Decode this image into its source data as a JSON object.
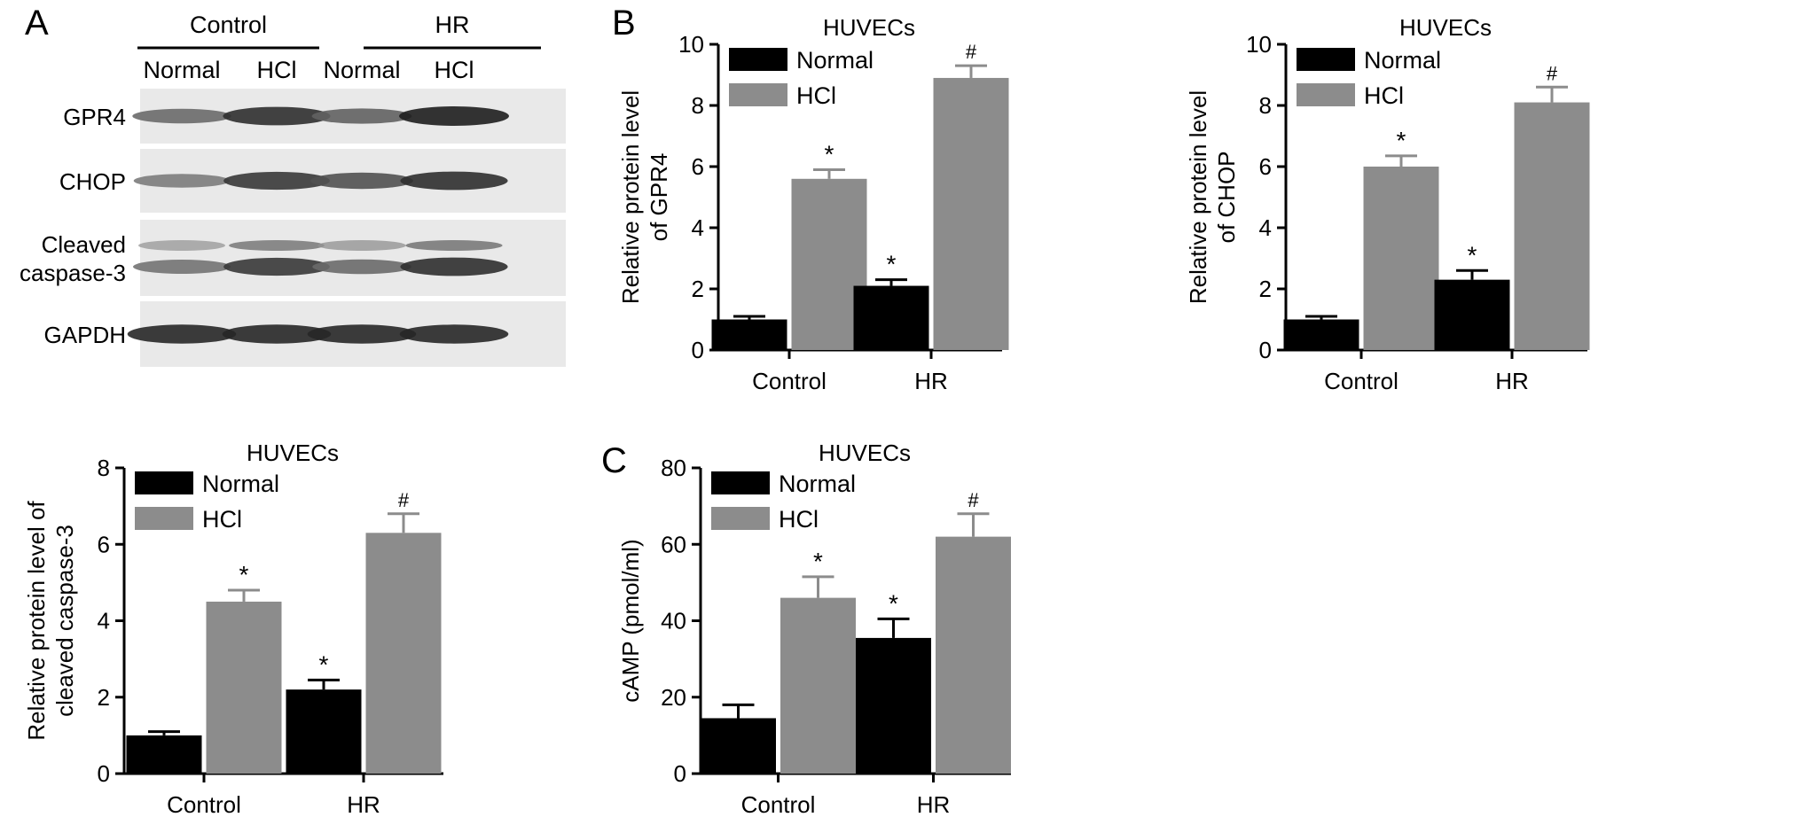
{
  "panels": {
    "A": "A",
    "B": "B",
    "C": "C"
  },
  "blot": {
    "groups": [
      "Control",
      "HR"
    ],
    "lanes": [
      "Normal",
      "HCl",
      "Normal",
      "HCl"
    ],
    "rows": [
      {
        "label": "GPR4",
        "intensity": [
          0.55,
          0.9,
          0.6,
          1.0
        ],
        "double": false
      },
      {
        "label": "CHOP",
        "intensity": [
          0.45,
          0.85,
          0.7,
          0.9
        ],
        "double": false
      },
      {
        "label": "Cleaved caspase-3",
        "intensity": [
          0.5,
          0.85,
          0.55,
          0.9
        ],
        "double": true
      },
      {
        "label": "GAPDH",
        "intensity": [
          0.95,
          0.95,
          0.95,
          0.95
        ],
        "double": false
      }
    ]
  },
  "chart_data": [
    {
      "type": "bar",
      "title": "HUVECs",
      "ylabel": "Relative protein level of GPR4",
      "ylabel_lines": [
        "Relative protein level",
        "of GPR4"
      ],
      "categories": [
        "Control",
        "HR"
      ],
      "ylim": [
        0,
        10
      ],
      "yticks": [
        0,
        2,
        4,
        6,
        8,
        10
      ],
      "series": [
        {
          "name": "Normal",
          "values": [
            1.0,
            2.1
          ],
          "errors": [
            0.1,
            0.2
          ],
          "annotations": [
            "",
            "*"
          ]
        },
        {
          "name": "HCl",
          "values": [
            5.6,
            8.9
          ],
          "errors": [
            0.3,
            0.4
          ],
          "annotations": [
            "*",
            "#"
          ]
        }
      ],
      "legend": "top-left"
    },
    {
      "type": "bar",
      "title": "HUVECs",
      "ylabel": "Relative protein level of CHOP",
      "ylabel_lines": [
        "Relative protein level",
        "of CHOP"
      ],
      "categories": [
        "Control",
        "HR"
      ],
      "ylim": [
        0,
        10
      ],
      "yticks": [
        0,
        2,
        4,
        6,
        8,
        10
      ],
      "series": [
        {
          "name": "Normal",
          "values": [
            1.0,
            2.3
          ],
          "errors": [
            0.1,
            0.3
          ],
          "annotations": [
            "",
            "*"
          ]
        },
        {
          "name": "HCl",
          "values": [
            6.0,
            8.1
          ],
          "errors": [
            0.35,
            0.5
          ],
          "annotations": [
            "*",
            "#"
          ]
        }
      ],
      "legend": "top-left"
    },
    {
      "type": "bar",
      "title": "HUVECs",
      "ylabel": "Relative protein level of cleaved caspase-3",
      "ylabel_lines": [
        "Relative protein level of",
        "cleaved caspase-3"
      ],
      "categories": [
        "Control",
        "HR"
      ],
      "ylim": [
        0,
        8
      ],
      "yticks": [
        0,
        2,
        4,
        6,
        8
      ],
      "series": [
        {
          "name": "Normal",
          "values": [
            1.0,
            2.2
          ],
          "errors": [
            0.1,
            0.25
          ],
          "annotations": [
            "",
            "*"
          ]
        },
        {
          "name": "HCl",
          "values": [
            4.5,
            6.3
          ],
          "errors": [
            0.3,
            0.5
          ],
          "annotations": [
            "*",
            "#"
          ]
        }
      ],
      "legend": "top-left"
    },
    {
      "type": "bar",
      "title": "HUVECs",
      "ylabel": "cAMP (pmol/ml)",
      "ylabel_lines": [
        "cAMP (pmol/ml)"
      ],
      "categories": [
        "Control",
        "HR"
      ],
      "ylim": [
        0,
        80
      ],
      "yticks": [
        0,
        20,
        40,
        60,
        80
      ],
      "series": [
        {
          "name": "Normal",
          "values": [
            14.5,
            35.5
          ],
          "errors": [
            3.5,
            5.0
          ],
          "annotations": [
            "",
            "*"
          ]
        },
        {
          "name": "HCl",
          "values": [
            46,
            62
          ],
          "errors": [
            5.5,
            6.0
          ],
          "annotations": [
            "*",
            "#"
          ]
        }
      ],
      "legend": "top-left"
    }
  ]
}
